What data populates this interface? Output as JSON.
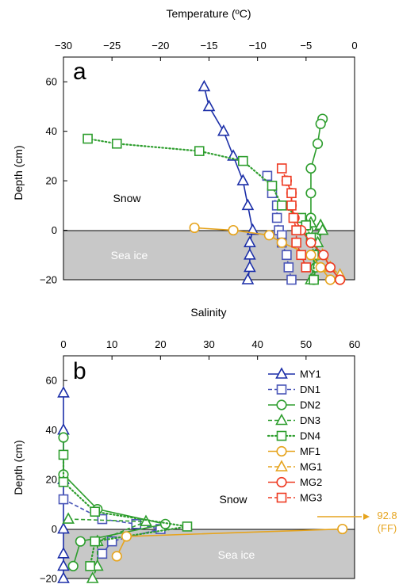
{
  "colors": {
    "MY1": "#1c2fa8",
    "DN1": "#4a56b8",
    "DN2": "#2e9e2e",
    "DN3": "#2e9e2e",
    "DN4": "#2e9e2e",
    "MF1": "#e6a41e",
    "MG1": "#e6a41e",
    "MG2": "#ee3a22",
    "MG3": "#ee3a22",
    "seaice": "#c8c8c8"
  },
  "chart_data": [
    {
      "panel": "a",
      "type": "line",
      "xlabel": "Temperature (ºC)",
      "ylabel": "Depth (cm)",
      "xlim": [
        -30,
        0
      ],
      "ylim": [
        -20,
        70
      ],
      "xticks": [
        "−30",
        "−25",
        "−20",
        "−15",
        "−10",
        "−5",
        "0"
      ],
      "yticks": [
        "−20",
        "0",
        "20",
        "40",
        "60"
      ],
      "xtick_values": [
        -30,
        -25,
        -20,
        -15,
        -10,
        -5,
        0
      ],
      "ytick_values": [
        -20,
        0,
        20,
        40,
        60
      ],
      "region_labels": {
        "snow": "Snow",
        "seaice": "Sea ice"
      },
      "series": [
        {
          "name": "MY1",
          "marker": "triangle",
          "dash": "solid",
          "x": [
            -15.5,
            -15,
            -13.5,
            -12.5,
            -11.5,
            -11,
            -10.5,
            -10.8,
            -10.8,
            -10.8,
            -11
          ],
          "y": [
            58,
            50,
            40,
            30,
            20,
            10,
            0,
            -5,
            -10,
            -15,
            -20
          ]
        },
        {
          "name": "DN1",
          "marker": "square",
          "dash": "dashed",
          "x": [
            -9,
            -8.5,
            -8,
            -8,
            -7.8,
            -7.5,
            -7.5,
            -7,
            -6.8,
            -6.5
          ],
          "y": [
            22,
            15,
            10,
            5,
            0,
            -2,
            -5,
            -10,
            -15,
            -20
          ]
        },
        {
          "name": "DN2",
          "marker": "circle",
          "dash": "solid",
          "x": [
            -3.3,
            -3.5,
            -3.8,
            -4.5,
            -4.5,
            -4.5,
            -4.8,
            -4,
            -3.8,
            -4,
            -4.2
          ],
          "y": [
            45,
            43,
            35,
            25,
            15,
            5,
            0,
            -3,
            -10,
            -15,
            -20
          ]
        },
        {
          "name": "DN3",
          "marker": "triangle",
          "dash": "dashed",
          "x": [
            -4.5,
            -3.5,
            -3.3,
            -3.8,
            -4,
            -4.5
          ],
          "y": [
            3,
            2,
            0,
            -5,
            -10,
            -20
          ]
        },
        {
          "name": "DN4",
          "marker": "square",
          "dash": "dotted",
          "x": [
            -27.5,
            -24.5,
            -16,
            -11.5,
            -8.5,
            -7.5,
            -5.5,
            -5,
            -4.5,
            -4.2,
            -4.2
          ],
          "y": [
            37,
            35,
            32,
            28,
            18,
            10,
            5,
            2,
            -3,
            -10,
            -20
          ]
        },
        {
          "name": "MF1",
          "marker": "circle",
          "dash": "solid",
          "x": [
            -16.5,
            -12.5,
            -8.8,
            -7.5,
            -4.5,
            -3.5,
            -2.5,
            -1.5
          ],
          "y": [
            1,
            0,
            -2,
            -5,
            -10,
            -15,
            -20,
            -20
          ]
        },
        {
          "name": "MG1",
          "marker": "triangle",
          "dash": "dashed",
          "x": [
            -3.3,
            -2.5,
            -1.5
          ],
          "y": [
            -10,
            -15,
            -18
          ]
        },
        {
          "name": "MG2",
          "marker": "circle",
          "dash": "solid",
          "x": [
            -7,
            -6.5,
            -6.5,
            -6.2,
            -5.5,
            -4.5,
            -3.2,
            -2.5,
            -1.5
          ],
          "y": [
            20,
            15,
            10,
            5,
            0,
            -5,
            -10,
            -15,
            -20
          ]
        },
        {
          "name": "MG3",
          "marker": "square",
          "dash": "dashed",
          "x": [
            -7.5,
            -7,
            -6.5,
            -6.5,
            -6.3,
            -6,
            -6,
            -5.5,
            -5
          ],
          "y": [
            25,
            20,
            15,
            10,
            5,
            0,
            -5,
            -10,
            -15
          ]
        }
      ]
    },
    {
      "panel": "b",
      "type": "line",
      "xlabel": "Salinity",
      "ylabel": "Depth (cm)",
      "xlim": [
        0,
        60
      ],
      "ylim": [
        -20,
        70
      ],
      "xticks": [
        "0",
        "10",
        "20",
        "30",
        "40",
        "50",
        "60"
      ],
      "yticks": [
        "−20",
        "0",
        "20",
        "40",
        "60"
      ],
      "xtick_values": [
        0,
        10,
        20,
        30,
        40,
        50,
        60
      ],
      "ytick_values": [
        -20,
        0,
        20,
        40,
        60
      ],
      "region_labels": {
        "snow": "Snow",
        "seaice": "Sea ice"
      },
      "annotation": {
        "value": "92.8",
        "label": "(FF)"
      },
      "series": [
        {
          "name": "MY1",
          "marker": "triangle",
          "dash": "solid",
          "x": [
            0,
            0,
            0,
            0,
            0,
            0,
            0
          ],
          "y": [
            55,
            40,
            20,
            0,
            -10,
            -15,
            -20
          ]
        },
        {
          "name": "DN1",
          "marker": "square",
          "dash": "dashed",
          "x": [
            0,
            8,
            15,
            20,
            10,
            8
          ],
          "y": [
            12,
            4,
            2,
            0,
            -5,
            -10
          ]
        },
        {
          "name": "DN2",
          "marker": "circle",
          "dash": "solid",
          "x": [
            0,
            0,
            7,
            21,
            3.5,
            2
          ],
          "y": [
            37,
            22,
            8,
            2,
            -5,
            -15
          ]
        },
        {
          "name": "DN3",
          "marker": "triangle",
          "dash": "dashed",
          "x": [
            1,
            17,
            7,
            7,
            6
          ],
          "y": [
            4,
            3,
            -5,
            -15,
            -20
          ]
        },
        {
          "name": "DN4",
          "marker": "square",
          "dash": "dotted",
          "x": [
            0,
            0,
            6.5,
            25.5,
            6.5,
            5.5
          ],
          "y": [
            30,
            19,
            7,
            1,
            -5,
            -15
          ]
        },
        {
          "name": "MF1",
          "marker": "circle",
          "dash": "solid",
          "x": [
            57.5,
            13,
            11
          ],
          "y": [
            0,
            -3,
            -11
          ]
        },
        {
          "name": "MG1",
          "marker": "triangle",
          "dash": "dashed",
          "x": [],
          "y": []
        },
        {
          "name": "MG2",
          "marker": "circle",
          "dash": "solid",
          "x": [],
          "y": []
        },
        {
          "name": "MG3",
          "marker": "square",
          "dash": "dashed",
          "x": [],
          "y": []
        }
      ],
      "legend": [
        "MY1",
        "DN1",
        "DN2",
        "DN3",
        "DN4",
        "MF1",
        "MG1",
        "MG2",
        "MG3"
      ],
      "legend_position": "top-right"
    }
  ]
}
